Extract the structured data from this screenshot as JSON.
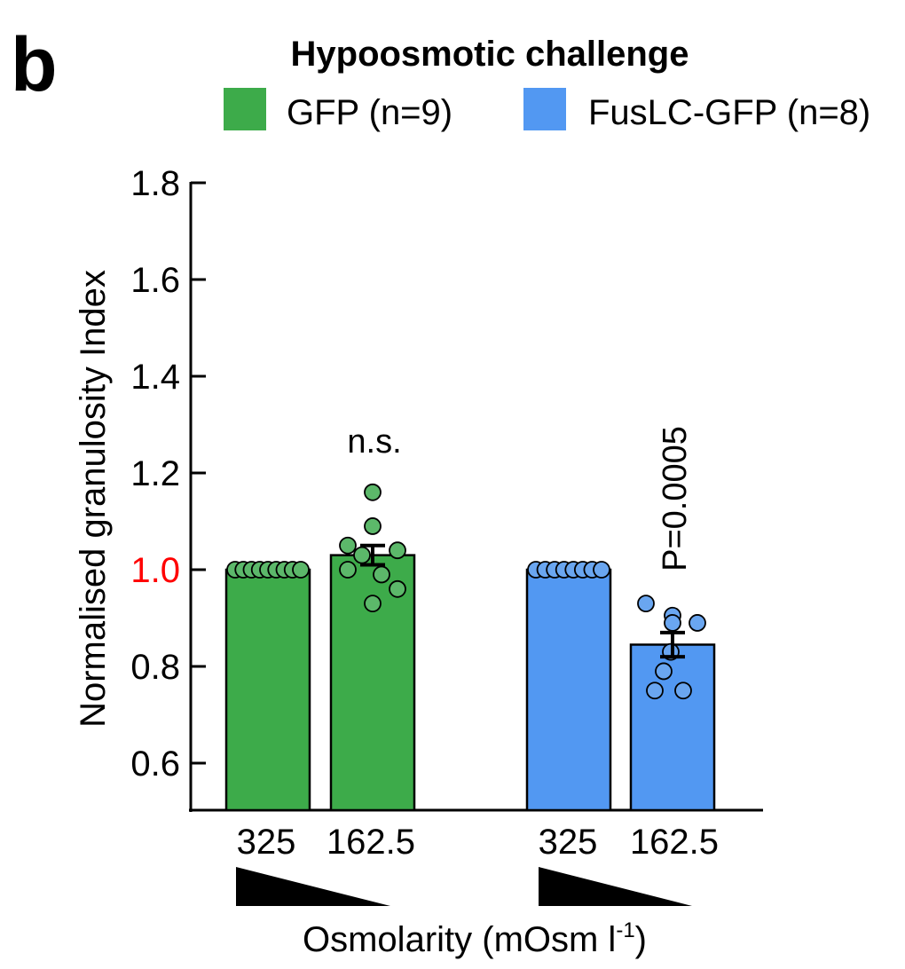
{
  "panel_label": "b",
  "chart_data": {
    "type": "bar",
    "title": "Hypoosmotic challenge",
    "ylabel": "Normalised granulosity Index",
    "xlabel_prefix": "Osmolarity (mOsm l",
    "xlabel_sup": "-1",
    "xlabel_suffix": ")",
    "ylim": [
      0.5,
      1.8
    ],
    "yticks": [
      "0.6",
      "0.8",
      "1.0",
      "1.2",
      "1.4",
      "1.6",
      "1.8"
    ],
    "highlight_tick": "1.0",
    "highlight_color": "#ff0000",
    "grid": false,
    "legend_position": "top",
    "series": [
      {
        "name": "GFP (n=9)",
        "color": "#3dab4a",
        "point_color": "#5cb86a",
        "categories": [
          "325",
          "162.5"
        ],
        "values": [
          1.0,
          1.03
        ],
        "errors": [
          0,
          0.02
        ],
        "points": [
          [
            1.0,
            1.0,
            1.0,
            1.0,
            1.0,
            1.0,
            1.0,
            1.0,
            1.0
          ],
          [
            1.16,
            1.09,
            1.05,
            1.03,
            1.04,
            1.0,
            0.99,
            0.96,
            0.93
          ]
        ]
      },
      {
        "name": "FusLC-GFP (n=8)",
        "color": "#5298f2",
        "point_color": "#6aa6f0",
        "categories": [
          "325",
          "162.5"
        ],
        "values": [
          1.0,
          0.845
        ],
        "errors": [
          0,
          0.025
        ],
        "points": [
          [
            1.0,
            1.0,
            1.0,
            1.0,
            1.0,
            1.0,
            1.0,
            1.0
          ],
          [
            0.93,
            0.905,
            0.89,
            0.89,
            0.83,
            0.79,
            0.75,
            0.75
          ]
        ]
      }
    ],
    "annotations": [
      "n.s.",
      "P=0.0005"
    ]
  }
}
